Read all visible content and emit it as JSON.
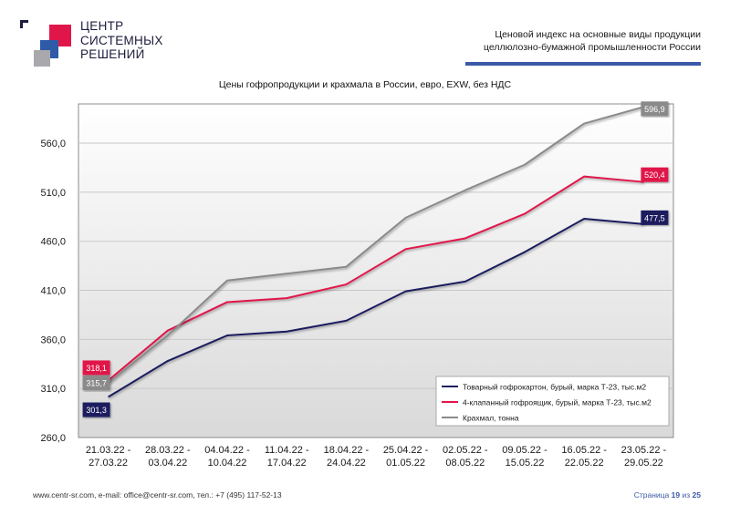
{
  "brand": {
    "lines": [
      "ЦЕНТР",
      "СИСТЕМНЫХ",
      "РЕШЕНИЙ"
    ],
    "colors": {
      "red": "#e0164a",
      "blue": "#2e5aa8",
      "gray": "#a9a9ad",
      "dark": "#1c1c3c"
    }
  },
  "header": {
    "title_line1": "Ценовой индекс на основные виды продукции",
    "title_line2": "целлюлозно-бумажной промышленности России"
  },
  "footer": {
    "contacts": "www.centr-sr.com, e-mail: office@centr-sr.com, тел.: +7 (495) 117-52-13",
    "page_prefix": "Страница",
    "page_current": "19",
    "page_sep": "из",
    "page_total": "25"
  },
  "chart_data": {
    "type": "line",
    "title": "Цены гофропродукции и крахмала в России, евро, EXW, без НДС",
    "xlabel": "",
    "ylabel": "",
    "ylim": [
      260,
      600
    ],
    "yticks": [
      260,
      310,
      360,
      410,
      460,
      510,
      560
    ],
    "ytick_labels": [
      "260,0",
      "310,0",
      "360,0",
      "410,0",
      "460,0",
      "510,0",
      "560,0"
    ],
    "grid": true,
    "legend_position": "bottom-right",
    "categories": [
      [
        "21.03.22 -",
        "27.03.22"
      ],
      [
        "28.03.22 -",
        "03.04.22"
      ],
      [
        "04.04.22 -",
        "10.04.22"
      ],
      [
        "11.04.22 -",
        "17.04.22"
      ],
      [
        "18.04.22 -",
        "24.04.22"
      ],
      [
        "25.04.22 -",
        "01.05.22"
      ],
      [
        "02.05.22 -",
        "08.05.22"
      ],
      [
        "09.05.22 -",
        "15.05.22"
      ],
      [
        "16.05.22 -",
        "22.05.22"
      ],
      [
        "23.05.22 -",
        "29.05.22"
      ]
    ],
    "series": [
      {
        "name": "Товарный гофрокартон, бурый, марка Т-23, тыс.м2",
        "color": "#1b1f5e",
        "values": [
          301.3,
          338,
          364,
          368,
          379,
          409,
          419,
          449,
          483,
          477.5
        ],
        "labels": {
          "first": "301,3",
          "last": "477,5"
        }
      },
      {
        "name": "4-клапанный гофроящик, бурый, марка Т-23, тыс.м2",
        "color": "#e0164a",
        "values": [
          318.1,
          369,
          398,
          402,
          416,
          452,
          463,
          488,
          526,
          520.4
        ],
        "labels": {
          "first": "318,1",
          "last": "520,4"
        }
      },
      {
        "name": "Крахмал, тонна",
        "color": "#8a8a8a",
        "values": [
          315.7,
          364,
          420,
          427,
          434,
          484,
          512,
          538,
          580,
          596.9
        ],
        "labels": {
          "first": "315,7",
          "last": "596,9"
        }
      }
    ]
  }
}
